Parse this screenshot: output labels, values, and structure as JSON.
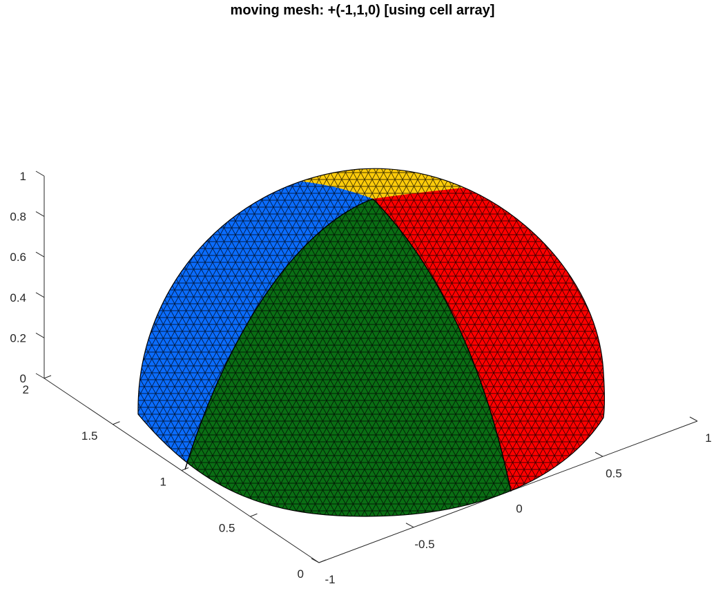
{
  "chart_data": {
    "type": "surface-mesh",
    "title": "moving mesh: +(-1,1,0) [using cell array]",
    "xlabel": "",
    "ylabel": "",
    "zlabel": "",
    "x_ticks": [
      "-1",
      "-0.5",
      "0",
      "0.5",
      "1"
    ],
    "y_ticks": [
      "0",
      "0.5",
      "1",
      "1.5",
      "2"
    ],
    "z_ticks": [
      "0",
      "0.2",
      "0.4",
      "0.6",
      "0.8",
      "1"
    ],
    "xlim": [
      -1,
      1
    ],
    "ylim": [
      0,
      2
    ],
    "zlim": [
      0,
      1
    ],
    "surface": {
      "shape": "hemisphere",
      "radius": 1,
      "center": [
        0,
        1,
        0
      ],
      "mesh": "triangulated",
      "edge_color": "#000000",
      "patches": [
        {
          "name": "blue",
          "color": "#0a6cff"
        },
        {
          "name": "green",
          "color": "#0a6e14"
        },
        {
          "name": "red",
          "color": "#ff0000"
        },
        {
          "name": "yellow",
          "color": "#ffcc0a"
        }
      ]
    },
    "grid": false
  }
}
